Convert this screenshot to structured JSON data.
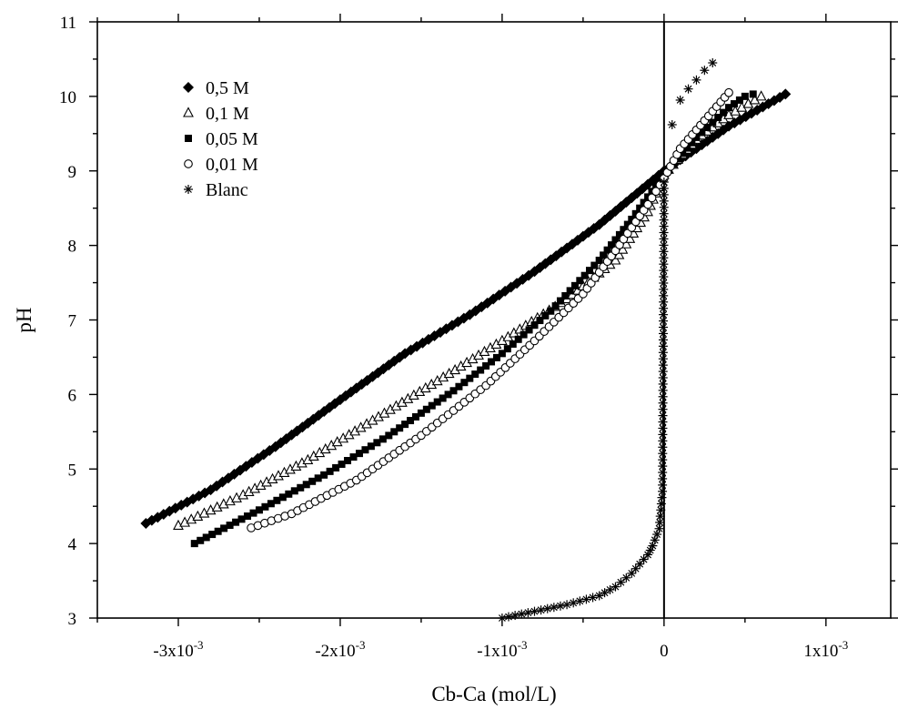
{
  "chart_data": {
    "type": "scatter",
    "title": "",
    "xlabel": "Cb-Ca (mol/L)",
    "ylabel": "pH",
    "xlim": [
      -0.0035,
      0.0014
    ],
    "ylim": [
      3,
      11
    ],
    "grid": false,
    "legend_position": "top-left",
    "zero_line_x": 0,
    "x_ticks": [
      {
        "value": -0.003,
        "mantissa": "-3x10",
        "exponent": "-3"
      },
      {
        "value": -0.002,
        "mantissa": "-2x10",
        "exponent": "-3"
      },
      {
        "value": -0.001,
        "mantissa": "-1x10",
        "exponent": "-3"
      },
      {
        "value": 0,
        "mantissa": "0",
        "exponent": ""
      },
      {
        "value": 0.001,
        "mantissa": "1x10",
        "exponent": "-3"
      }
    ],
    "y_ticks": [
      3,
      4,
      5,
      6,
      7,
      8,
      9,
      10,
      11
    ],
    "series": [
      {
        "name": "0,5 M",
        "marker": "diamond-filled",
        "x": [
          -0.0032,
          -0.0028,
          -0.0024,
          -0.002,
          -0.0016,
          -0.0012,
          -0.0008,
          -0.0004,
          0.0,
          0.0004,
          0.00075
        ],
        "y": [
          4.27,
          4.72,
          5.3,
          5.93,
          6.55,
          7.07,
          7.65,
          8.28,
          9.0,
          9.6,
          10.03
        ]
      },
      {
        "name": "0,1 M",
        "marker": "triangle-open",
        "x": [
          -0.003,
          -0.0026,
          -0.0022,
          -0.0018,
          -0.0014,
          -0.001,
          -0.0006,
          -0.0003,
          -0.0001,
          0.0,
          0.0002,
          0.0004,
          0.0006
        ],
        "y": [
          4.24,
          4.65,
          5.12,
          5.65,
          6.18,
          6.72,
          7.28,
          7.8,
          8.45,
          8.95,
          9.42,
          9.75,
          10.0
        ]
      },
      {
        "name": "0,05 M",
        "marker": "square-filled",
        "x": [
          -0.0029,
          -0.0025,
          -0.0021,
          -0.0017,
          -0.0013,
          -0.001,
          -0.0007,
          -0.0004,
          -0.0002,
          0.0,
          0.0002,
          0.0004,
          0.0005,
          0.00055
        ],
        "y": [
          4.0,
          4.45,
          4.92,
          5.45,
          6.05,
          6.55,
          7.12,
          7.8,
          8.35,
          8.95,
          9.45,
          9.85,
          10.0,
          10.03
        ]
      },
      {
        "name": "0,01 M",
        "marker": "circle-open",
        "x": [
          -0.00255,
          -0.0023,
          -0.0019,
          -0.0015,
          -0.0011,
          -0.0008,
          -0.0005,
          -0.0003,
          -0.0001,
          0.0,
          0.0001,
          0.0002,
          0.0003,
          0.0004
        ],
        "y": [
          4.21,
          4.4,
          4.85,
          5.45,
          6.12,
          6.72,
          7.35,
          7.93,
          8.55,
          8.9,
          9.3,
          9.55,
          9.8,
          10.05
        ]
      },
      {
        "name": "Blanc",
        "marker": "asterisk",
        "x": [
          -0.001,
          -0.0008,
          -0.0006,
          -0.0004,
          -0.0003,
          -0.0002,
          -0.0001,
          -7e-05,
          -3e-05,
          -1e-05,
          0.0,
          5e-05,
          0.0001,
          0.00015,
          0.0002,
          0.00025,
          0.0003
        ],
        "y": [
          3.0,
          3.09,
          3.18,
          3.3,
          3.42,
          3.6,
          3.85,
          3.97,
          4.2,
          4.7,
          8.85,
          9.62,
          9.95,
          10.1,
          10.22,
          10.35,
          10.45
        ]
      }
    ]
  }
}
